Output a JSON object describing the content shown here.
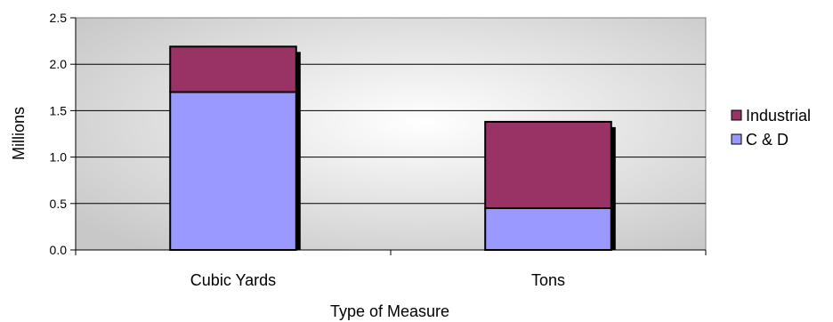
{
  "chart_data": {
    "type": "bar",
    "stacked": true,
    "categories": [
      "Cubic Yards",
      "Tons"
    ],
    "series": [
      {
        "name": "C & D",
        "values": [
          1.7,
          0.45
        ],
        "color": "#9999ff"
      },
      {
        "name": "Industrial",
        "values": [
          0.49,
          0.93
        ],
        "color": "#993366"
      }
    ],
    "xlabel": "Type of Measure",
    "ylabel": "Millions",
    "ylim": [
      0,
      2.5
    ],
    "yticks": [
      "0.0",
      "0.5",
      "1.0",
      "1.5",
      "2.0",
      "2.5"
    ],
    "grid": true,
    "legend_position": "right",
    "legend_order": [
      "Industrial",
      "C & D"
    ]
  }
}
